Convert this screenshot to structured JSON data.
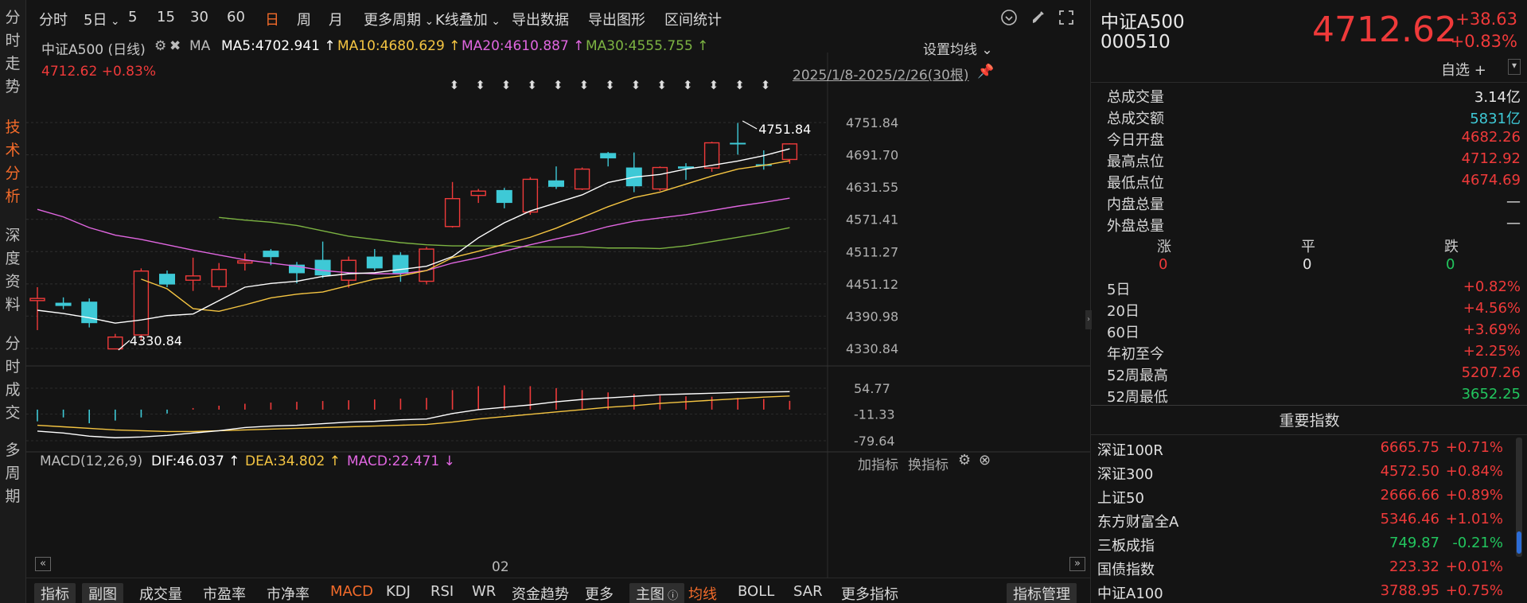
{
  "left_nav": [
    "分时走势",
    "技术分析",
    "深度资料",
    "分时成交",
    "多周期"
  ],
  "left_nav_active": 1,
  "periods": [
    "分时",
    "5日",
    "5",
    "15",
    "30",
    "60",
    "日",
    "周",
    "月",
    "更多周期",
    "K线叠加",
    "导出数据",
    "导出图形",
    "区间统计"
  ],
  "period_active": "日",
  "header": {
    "name": "中证A500 (日线)",
    "ma_label": "MA",
    "ma5": "MA5:4702.941",
    "ma10": "MA10:4680.629",
    "ma20": "MA20:4610.887",
    "ma30": "MA30:4555.755",
    "price_line": "4712.62",
    "change_line": "+0.83%",
    "set_ma": "设置均线",
    "range": "2025/1/8-2025/2/26(30根)"
  },
  "colors": {
    "up": "#ef3a3a",
    "down": "#3ec9d6",
    "ma5": "#ffffff",
    "ma10": "#f5c542",
    "ma20": "#e066e0",
    "ma30": "#7cb342",
    "accent": "#f36b2a"
  },
  "y_axis": [
    "4751.84",
    "4691.70",
    "4631.55",
    "4571.41",
    "4511.27",
    "4451.12",
    "4390.98",
    "4330.84"
  ],
  "annotations": {
    "high": "4751.84",
    "low": "4330.84"
  },
  "candles": [
    {
      "o": 4420,
      "c": 4424,
      "h": 4445,
      "l": 4365
    },
    {
      "o": 4416,
      "c": 4410,
      "h": 4426,
      "l": 4404
    },
    {
      "o": 4418,
      "c": 4378,
      "h": 4424,
      "l": 4370
    },
    {
      "o": 4330,
      "c": 4352,
      "h": 4358,
      "l": 4330
    },
    {
      "o": 4356,
      "c": 4475,
      "h": 4480,
      "l": 4345
    },
    {
      "o": 4470,
      "c": 4450,
      "h": 4476,
      "l": 4445
    },
    {
      "o": 4458,
      "c": 4466,
      "h": 4500,
      "l": 4438
    },
    {
      "o": 4446,
      "c": 4478,
      "h": 4490,
      "l": 4440
    },
    {
      "o": 4490,
      "c": 4494,
      "h": 4508,
      "l": 4476
    },
    {
      "o": 4513,
      "c": 4501,
      "h": 4516,
      "l": 4486
    },
    {
      "o": 4487,
      "c": 4471,
      "h": 4492,
      "l": 4452
    },
    {
      "o": 4496,
      "c": 4467,
      "h": 4530,
      "l": 4462
    },
    {
      "o": 4458,
      "c": 4495,
      "h": 4502,
      "l": 4444
    },
    {
      "o": 4502,
      "c": 4480,
      "h": 4516,
      "l": 4476
    },
    {
      "o": 4505,
      "c": 4470,
      "h": 4510,
      "l": 4455
    },
    {
      "o": 4456,
      "c": 4516,
      "h": 4520,
      "l": 4450
    },
    {
      "o": 4558,
      "c": 4610,
      "h": 4641,
      "l": 4556
    },
    {
      "o": 4616,
      "c": 4624,
      "h": 4628,
      "l": 4602
    },
    {
      "o": 4626,
      "c": 4602,
      "h": 4630,
      "l": 4592
    },
    {
      "o": 4585,
      "c": 4646,
      "h": 4650,
      "l": 4580
    },
    {
      "o": 4644,
      "c": 4632,
      "h": 4670,
      "l": 4628
    },
    {
      "o": 4628,
      "c": 4665,
      "h": 4668,
      "l": 4626
    },
    {
      "o": 4695,
      "c": 4685,
      "h": 4697,
      "l": 4670
    },
    {
      "o": 4668,
      "c": 4633,
      "h": 4696,
      "l": 4622
    },
    {
      "o": 4628,
      "c": 4668,
      "h": 4670,
      "l": 4624
    },
    {
      "o": 4670,
      "c": 4666,
      "h": 4676,
      "l": 4645
    },
    {
      "o": 4667,
      "c": 4714,
      "h": 4716,
      "l": 4660
    },
    {
      "o": 4714,
      "c": 4712,
      "h": 4751,
      "l": 4692
    },
    {
      "o": 4674,
      "c": 4672,
      "h": 4700,
      "l": 4664
    },
    {
      "o": 4683,
      "c": 4712,
      "h": 4713,
      "l": 4675
    }
  ],
  "ma_lines": {
    "ma5": [
      4402,
      4396,
      4388,
      4378,
      4384,
      4392,
      4395,
      4420,
      4445,
      4452,
      4456,
      4465,
      4470,
      4472,
      4478,
      4484,
      4502,
      4537,
      4565,
      4587,
      4602,
      4617,
      4640,
      4650,
      4655,
      4665,
      4672,
      4680,
      4690,
      4702.9
    ],
    "ma10": [
      null,
      null,
      null,
      null,
      4460,
      4442,
      4405,
      4400,
      4412,
      4425,
      4432,
      4436,
      4448,
      4460,
      4466,
      4476,
      4500,
      4512,
      4525,
      4538,
      4555,
      4575,
      4595,
      4612,
      4622,
      4637,
      4652,
      4665,
      4672,
      4680.6
    ],
    "ma20": [
      4590,
      4576,
      4556,
      4542,
      4534,
      4524,
      4514,
      4505,
      4496,
      4490,
      4484,
      4476,
      4472,
      4470,
      4470,
      4476,
      4490,
      4500,
      4512,
      4524,
      4535,
      4545,
      4558,
      4568,
      4574,
      4580,
      4588,
      4596,
      4603,
      4610.9
    ],
    "ma30": [
      null,
      null,
      null,
      null,
      null,
      null,
      null,
      4575,
      4570,
      4566,
      4560,
      4550,
      4540,
      4534,
      4528,
      4524,
      4522,
      4522,
      4522,
      4520,
      4520,
      4520,
      4518,
      4518,
      4517,
      4522,
      4530,
      4538,
      4546,
      4555.8
    ]
  },
  "arrows_count": 13,
  "macd_header": {
    "title": "MACD(12,26,9)",
    "dif": "DIF:46.037",
    "dea": "DEA:34.802",
    "macd": "MACD:22.471",
    "add": "加指标",
    "switch": "换指标"
  },
  "macd_y": [
    "54.77",
    "-11.33",
    "-79.64"
  ],
  "macd_hist": [
    -30,
    -20,
    -35,
    -28,
    -20,
    -10,
    4,
    10,
    15,
    18,
    20,
    22,
    24,
    26,
    28,
    30,
    50,
    60,
    62,
    60,
    55,
    50,
    44,
    40,
    36,
    34,
    33,
    30,
    27,
    22.5
  ],
  "macd_dif": [
    -55,
    -60,
    -68,
    -72,
    -70,
    -66,
    -60,
    -54,
    -46,
    -42,
    -40,
    -36,
    -32,
    -30,
    -26,
    -24,
    -10,
    0,
    6,
    12,
    20,
    26,
    30,
    34,
    38,
    40,
    42,
    44,
    45,
    46
  ],
  "macd_dea": [
    -40,
    -44,
    -48,
    -52,
    -54,
    -56,
    -56,
    -54,
    -52,
    -50,
    -48,
    -46,
    -44,
    -42,
    -40,
    -38,
    -32,
    -24,
    -18,
    -12,
    -6,
    0,
    6,
    10,
    16,
    20,
    24,
    28,
    32,
    34.8
  ],
  "x_label": "02",
  "bottom_tabs": [
    "指标",
    "副图",
    "成交量",
    "市盈率",
    "市净率",
    "MACD",
    "KDJ",
    "RSI",
    "WR",
    "资金趋势",
    "更多",
    "主图",
    "均线",
    "BOLL",
    "SAR",
    "更多指标",
    "指标管理"
  ],
  "quote": {
    "name": "中证A500",
    "code": "000510",
    "price": "4712.62",
    "change": "+38.63",
    "change_pct": "+0.83%",
    "watch": "自选 +"
  },
  "stats": [
    {
      "label": "总成交量",
      "value": "3.14亿",
      "color": "white"
    },
    {
      "label": "总成交额",
      "value": "5831亿",
      "color": "cyan"
    },
    {
      "label": "今日开盘",
      "value": "4682.26",
      "color": "red"
    },
    {
      "label": "最高点位",
      "value": "4712.92",
      "color": "red"
    },
    {
      "label": "最低点位",
      "value": "4674.69",
      "color": "red"
    },
    {
      "label": "内盘总量",
      "value": "—",
      "color": "white"
    },
    {
      "label": "外盘总量",
      "value": "—",
      "color": "white"
    }
  ],
  "breadth": {
    "up_label": "涨",
    "flat_label": "平",
    "down_label": "跌",
    "up": "0",
    "flat": "0",
    "down": "0"
  },
  "perf": [
    {
      "label": "5日",
      "value": "+0.82%",
      "color": "red"
    },
    {
      "label": "20日",
      "value": "+4.56%",
      "color": "red"
    },
    {
      "label": "60日",
      "value": "+3.69%",
      "color": "red"
    },
    {
      "label": "年初至今",
      "value": "+2.25%",
      "color": "red"
    },
    {
      "label": "52周最高",
      "value": "5207.26",
      "color": "red"
    },
    {
      "label": "52周最低",
      "value": "3652.25",
      "color": "green"
    }
  ],
  "indices_title": "重要指数",
  "indices": [
    {
      "name": "深证100R",
      "price": "6665.75",
      "change": "+0.71%",
      "color": "red"
    },
    {
      "name": "深证300",
      "price": "4572.50",
      "change": "+0.84%",
      "color": "red"
    },
    {
      "name": "上证50",
      "price": "2666.66",
      "change": "+0.89%",
      "color": "red"
    },
    {
      "name": "东方财富全A",
      "price": "5346.46",
      "change": "+1.01%",
      "color": "red"
    },
    {
      "name": "三板成指",
      "price": "749.87",
      "change": "-0.21%",
      "color": "green"
    },
    {
      "name": "国债指数",
      "price": "223.32",
      "change": "+0.01%",
      "color": "red"
    },
    {
      "name": "中证A100",
      "price": "3788.95",
      "change": "+0.75%",
      "color": "red"
    }
  ]
}
